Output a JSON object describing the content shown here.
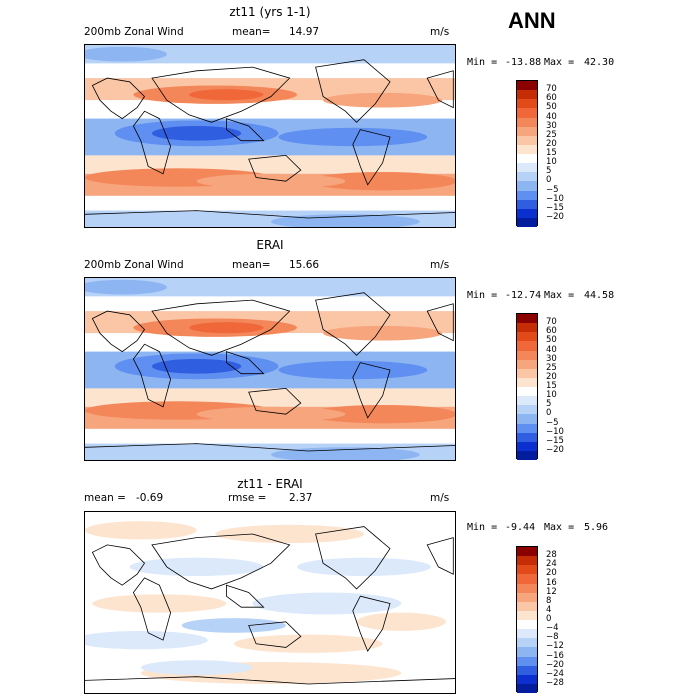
{
  "season": "ANN",
  "panels": [
    {
      "title": "zt11 (yrs 1-1)",
      "left_label": "200mb Zonal Wind",
      "mean_label": "mean=",
      "mean_value": "14.97",
      "units": "m/s",
      "min_label": "Min =",
      "min_value": "-13.88",
      "max_label": "Max =",
      "max_value": "42.30",
      "levels": [
        "70",
        "60",
        "50",
        "40",
        "30",
        "25",
        "20",
        "15",
        "10",
        "5",
        "0",
        "−5",
        "−10",
        "−15",
        "−20"
      ],
      "colors": [
        "#8b0000",
        "#c42d05",
        "#e34a1a",
        "#f0683a",
        "#f3875a",
        "#f6a57d",
        "#fac6a6",
        "#fde4cf",
        "#ffffff",
        "#dbe9fb",
        "#b7d2f7",
        "#8db5f2",
        "#5f8ff0",
        "#2f5fe0",
        "#0c2fd0",
        "#041d9e"
      ],
      "mode": "wind"
    },
    {
      "title": "ERAI",
      "left_label": "200mb Zonal Wind",
      "mean_label": "mean=",
      "mean_value": "15.66",
      "units": "m/s",
      "min_label": "Min =",
      "min_value": "-12.74",
      "max_label": "Max =",
      "max_value": "44.58",
      "levels": [
        "70",
        "60",
        "50",
        "40",
        "30",
        "25",
        "20",
        "15",
        "10",
        "5",
        "0",
        "−5",
        "−10",
        "−15",
        "−20"
      ],
      "colors": [
        "#8b0000",
        "#c42d05",
        "#e34a1a",
        "#f0683a",
        "#f3875a",
        "#f6a57d",
        "#fac6a6",
        "#fde4cf",
        "#ffffff",
        "#dbe9fb",
        "#b7d2f7",
        "#8db5f2",
        "#5f8ff0",
        "#2f5fe0",
        "#0c2fd0",
        "#041d9e"
      ],
      "mode": "wind"
    },
    {
      "title": "zt11 - ERAI",
      "left_label": "mean =",
      "mean_label": "rmse =",
      "left_value": "-0.69",
      "mean_value": "2.37",
      "units": "m/s",
      "min_label": "Min =",
      "min_value": "-9.44",
      "max_label": "Max =",
      "max_value": "5.96",
      "levels": [
        "28",
        "24",
        "20",
        "16",
        "12",
        "8",
        "4",
        "0",
        "−4",
        "−8",
        "−12",
        "−16",
        "−20",
        "−24",
        "−28"
      ],
      "colors": [
        "#8b0000",
        "#c42d05",
        "#e34a1a",
        "#f0683a",
        "#f3875a",
        "#f6a57d",
        "#fac6a6",
        "#fde4cf",
        "#ffffff",
        "#dbe9fb",
        "#b7d2f7",
        "#8db5f2",
        "#5f8ff0",
        "#2f5fe0",
        "#0c2fd0",
        "#041d9e"
      ],
      "mode": "diff"
    }
  ]
}
